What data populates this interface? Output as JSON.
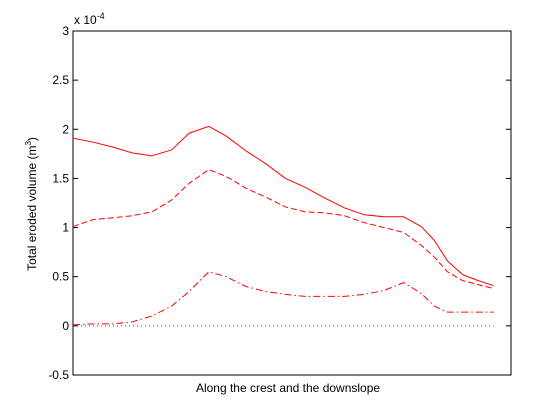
{
  "chart_data": {
    "type": "line",
    "xlabel": "Along the crest and the downslope",
    "ylabel_text": "Total eroded volume (m",
    "ylabel_superscript": "3",
    "ylabel_suffix": ")",
    "ylim": [
      -0.5,
      3
    ],
    "xlim": [
      0,
      1
    ],
    "y_ticks": [
      "-0.5",
      "0",
      "0.5",
      "1",
      "1.5",
      "2",
      "2.5",
      "3"
    ],
    "y_tick_values": [
      -0.5,
      0,
      0.5,
      1,
      1.5,
      2,
      2.5,
      3
    ],
    "exponent_label": {
      "prefix": "x 10",
      "power": "-4"
    },
    "grid": false,
    "line_color": "#ff0000",
    "series": [
      {
        "style": "solid",
        "x": [
          0.0,
          0.045,
          0.09,
          0.135,
          0.18,
          0.225,
          0.265,
          0.31,
          0.35,
          0.395,
          0.44,
          0.485,
          0.53,
          0.575,
          0.62,
          0.665,
          0.71,
          0.755,
          0.795,
          0.825,
          0.855,
          0.89,
          0.925,
          0.96
        ],
        "y": [
          1.91,
          1.87,
          1.82,
          1.76,
          1.73,
          1.79,
          1.96,
          2.03,
          1.93,
          1.78,
          1.65,
          1.5,
          1.41,
          1.3,
          1.2,
          1.13,
          1.11,
          1.11,
          1.01,
          0.87,
          0.66,
          0.52,
          0.46,
          0.41
        ]
      },
      {
        "style": "dashed",
        "x": [
          0.0,
          0.045,
          0.09,
          0.135,
          0.18,
          0.225,
          0.265,
          0.31,
          0.35,
          0.395,
          0.44,
          0.485,
          0.53,
          0.575,
          0.62,
          0.665,
          0.71,
          0.755,
          0.795,
          0.825,
          0.855,
          0.89,
          0.925,
          0.96
        ],
        "y": [
          1.01,
          1.08,
          1.1,
          1.12,
          1.16,
          1.28,
          1.45,
          1.59,
          1.52,
          1.4,
          1.31,
          1.21,
          1.16,
          1.15,
          1.12,
          1.05,
          1.0,
          0.95,
          0.82,
          0.7,
          0.55,
          0.46,
          0.42,
          0.38
        ]
      },
      {
        "style": "dashdot",
        "x": [
          0.0,
          0.045,
          0.09,
          0.135,
          0.18,
          0.225,
          0.265,
          0.31,
          0.35,
          0.395,
          0.44,
          0.485,
          0.53,
          0.575,
          0.62,
          0.665,
          0.71,
          0.755,
          0.795,
          0.825,
          0.855,
          0.89,
          0.925,
          0.96
        ],
        "y": [
          0.01,
          0.02,
          0.02,
          0.04,
          0.1,
          0.2,
          0.35,
          0.55,
          0.5,
          0.4,
          0.35,
          0.32,
          0.3,
          0.3,
          0.3,
          0.32,
          0.36,
          0.44,
          0.33,
          0.2,
          0.14,
          0.14,
          0.14,
          0.14
        ]
      },
      {
        "style": "dotted",
        "x": [
          0.0,
          0.96
        ],
        "y": [
          0.0,
          0.0
        ]
      }
    ]
  }
}
